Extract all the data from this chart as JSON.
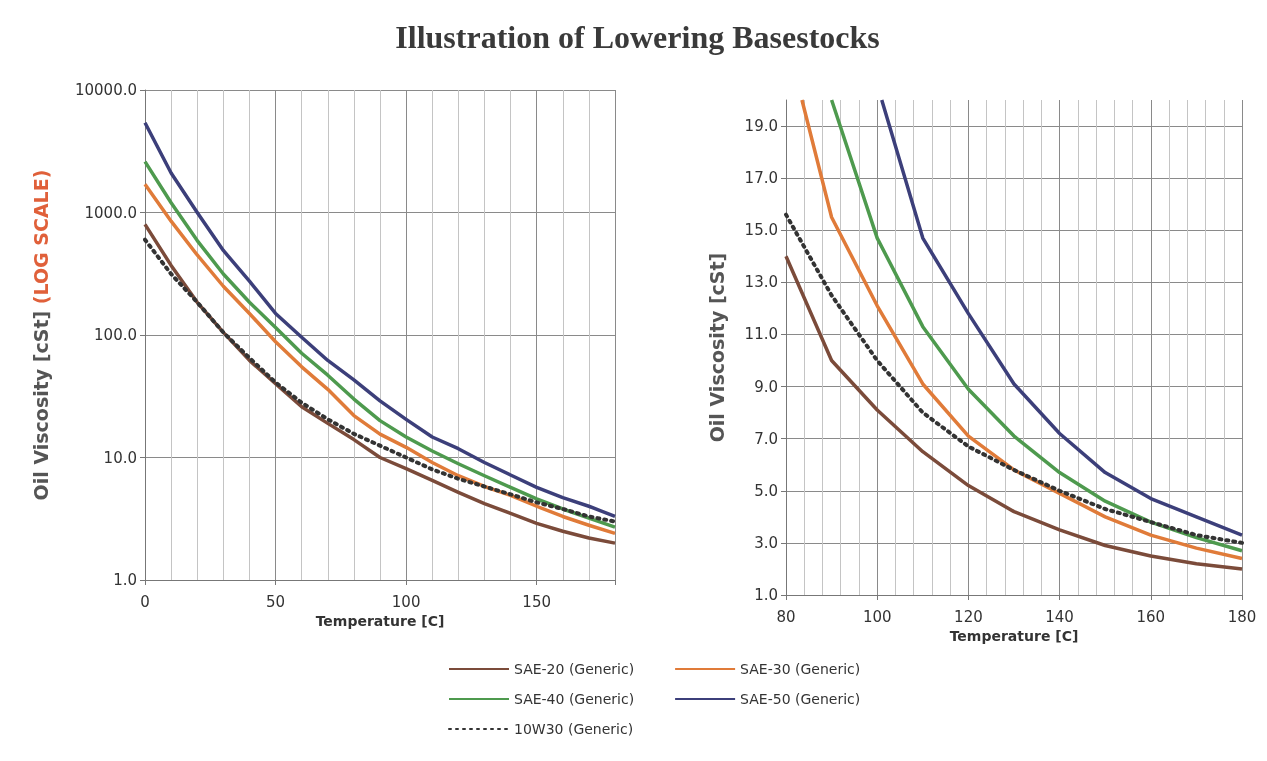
{
  "chart_data": [
    {
      "type": "line",
      "title": "Illustration of Lowering Basestocks",
      "xlabel": "Temperature [C]",
      "ylabel": "Oil Viscosity [cSt]",
      "annotations": [
        "(LOG SCALE)"
      ],
      "log": "y",
      "grid": true,
      "legend": "bottom",
      "marker": "none",
      "xlim": [
        0,
        180
      ],
      "xticks": [
        0,
        50,
        100,
        150
      ],
      "ylim": [
        1,
        10000
      ],
      "yticks": [
        {
          "value": 1,
          "label": "1.0"
        },
        {
          "value": 10,
          "label": "10.0"
        },
        {
          "value": 100,
          "label": "100.0"
        },
        {
          "value": 1000,
          "label": "1000.0"
        },
        {
          "value": 10000,
          "label": "10000.0"
        }
      ],
      "x": [
        0,
        10,
        20,
        30,
        40,
        50,
        60,
        70,
        80,
        90,
        100,
        110,
        120,
        130,
        140,
        150,
        160,
        170,
        180
      ],
      "series": [
        {
          "name": "SAE-20 (Generic)",
          "color": "#7b4b3a",
          "line_style": "solid",
          "values": [
            800,
            370,
            185,
            105,
            62,
            40,
            26,
            19,
            14,
            10,
            8.1,
            6.5,
            5.2,
            4.2,
            3.5,
            2.9,
            2.5,
            2.2,
            2.0
          ]
        },
        {
          "name": "SAE-30 (Generic)",
          "color": "#e07b39",
          "line_style": "solid",
          "values": [
            1700,
            850,
            450,
            250,
            150,
            88,
            55,
            36,
            22,
            15.5,
            12.1,
            9.1,
            7.1,
            5.8,
            4.9,
            4.0,
            3.3,
            2.8,
            2.4
          ]
        },
        {
          "name": "SAE-40 (Generic)",
          "color": "#4e9a4e",
          "line_style": "solid",
          "values": [
            2600,
            1200,
            590,
            315,
            185,
            115,
            71,
            47,
            30,
            20,
            14.7,
            11.3,
            8.9,
            7.1,
            5.7,
            4.6,
            3.8,
            3.2,
            2.7
          ]
        },
        {
          "name": "SAE-50 (Generic)",
          "color": "#3c3f7a",
          "line_style": "solid",
          "values": [
            5400,
            2100,
            1000,
            490,
            275,
            150,
            96,
            62,
            43,
            29,
            20.5,
            14.7,
            11.8,
            9.1,
            7.2,
            5.7,
            4.7,
            4.0,
            3.3
          ]
        },
        {
          "name": "10W30 (Generic)",
          "color": "#333333",
          "line_style": "dotted",
          "values": [
            600,
            315,
            185,
            105,
            65,
            41,
            28,
            20.5,
            15.6,
            12.5,
            10.0,
            8.0,
            6.7,
            5.8,
            5.0,
            4.3,
            3.8,
            3.3,
            3.0
          ]
        }
      ]
    },
    {
      "type": "line",
      "xlabel": "Temperature [C]",
      "ylabel": "Oil Viscosity [cSt]",
      "grid": true,
      "marker": "none",
      "xlim": [
        80,
        180
      ],
      "xticks": [
        80,
        100,
        120,
        140,
        160,
        180
      ],
      "ylim": [
        1,
        20
      ],
      "yticks": [
        {
          "value": 1,
          "label": "1.0"
        },
        {
          "value": 3,
          "label": "3.0"
        },
        {
          "value": 5,
          "label": "5.0"
        },
        {
          "value": 7,
          "label": "7.0"
        },
        {
          "value": 9,
          "label": "9.0"
        },
        {
          "value": 11,
          "label": "11.0"
        },
        {
          "value": 13,
          "label": "13.0"
        },
        {
          "value": 15,
          "label": "15.0"
        },
        {
          "value": 17,
          "label": "17.0"
        },
        {
          "value": 19,
          "label": "19.0"
        }
      ],
      "series": [
        {
          "color": "#7b4b3a",
          "line_style": "solid",
          "x": [
            80,
            90,
            100,
            110,
            120,
            130,
            140,
            150,
            160,
            170,
            180
          ],
          "values": [
            14.0,
            10.0,
            8.1,
            6.5,
            5.2,
            4.2,
            3.5,
            2.9,
            2.5,
            2.2,
            2.0
          ]
        },
        {
          "color": "#e07b39",
          "line_style": "solid",
          "x": [
            83.5,
            90,
            100,
            110,
            120,
            130,
            140,
            150,
            160,
            170,
            180
          ],
          "values": [
            20,
            15.5,
            12.1,
            9.1,
            7.1,
            5.8,
            4.9,
            4.0,
            3.3,
            2.8,
            2.4
          ]
        },
        {
          "color": "#4e9a4e",
          "line_style": "solid",
          "x": [
            90,
            100,
            110,
            120,
            130,
            140,
            150,
            160,
            170,
            180
          ],
          "values": [
            20,
            14.7,
            11.3,
            8.9,
            7.1,
            5.7,
            4.6,
            3.8,
            3.2,
            2.7
          ]
        },
        {
          "color": "#3c3f7a",
          "line_style": "solid",
          "x": [
            101,
            110,
            120,
            130,
            140,
            150,
            160,
            170,
            180
          ],
          "values": [
            20,
            14.7,
            11.8,
            9.1,
            7.2,
            5.7,
            4.7,
            4.0,
            3.3
          ]
        },
        {
          "color": "#333333",
          "line_style": "dotted",
          "x": [
            80,
            90,
            100,
            110,
            120,
            130,
            140,
            150,
            160,
            170,
            180
          ],
          "values": [
            15.6,
            12.5,
            10.0,
            8.0,
            6.7,
            5.8,
            5.0,
            4.3,
            3.8,
            3.3,
            3.0
          ]
        }
      ]
    }
  ]
}
